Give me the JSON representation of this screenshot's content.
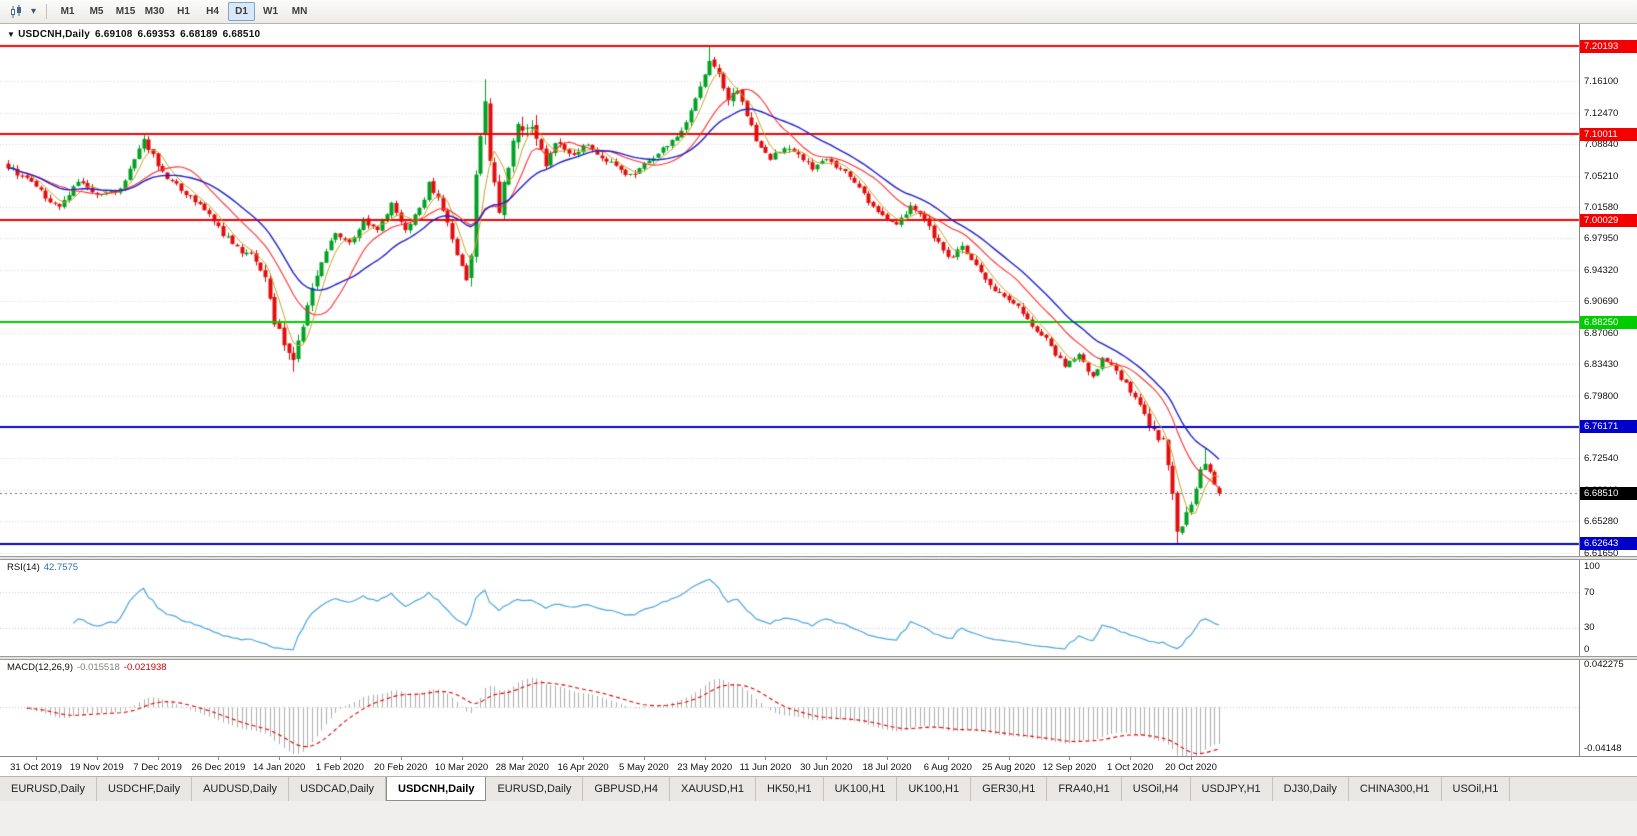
{
  "toolbar": {
    "chart_type_icon": "candlestick-chart",
    "dropdown_icon": "▾",
    "timeframes": [
      {
        "label": "M1",
        "active": false
      },
      {
        "label": "M5",
        "active": false
      },
      {
        "label": "M15",
        "active": false
      },
      {
        "label": "M30",
        "active": false
      },
      {
        "label": "H1",
        "active": false
      },
      {
        "label": "H4",
        "active": false
      },
      {
        "label": "D1",
        "active": true
      },
      {
        "label": "W1",
        "active": false
      },
      {
        "label": "MN",
        "active": false
      }
    ]
  },
  "chart": {
    "title": {
      "collapse_icon": "▼",
      "symbol": "USDCNH,Daily",
      "open": "6.69108",
      "high": "6.69353",
      "low": "6.68189",
      "close": "6.68510"
    },
    "price_scale_labels": [
      "7.16100",
      "7.12470",
      "7.08840",
      "7.05210",
      "7.01580",
      "6.97950",
      "6.94320",
      "6.90690",
      "6.87060",
      "6.83430",
      "6.79800",
      "6.76170",
      "6.72540",
      "6.68910",
      "6.65280",
      "6.61650"
    ],
    "horizontal_lines": [
      {
        "price": 7.20193,
        "label": "7.20193",
        "color": "#F40000"
      },
      {
        "price": 7.10011,
        "label": "7.10011",
        "color": "#F40000"
      },
      {
        "price": 7.00029,
        "label": "7.00029",
        "color": "#F40000"
      },
      {
        "price": 6.8825,
        "label": "6.88250",
        "color": "#00CC00"
      },
      {
        "price": 6.76171,
        "label": "6.76171",
        "color": "#0000C8"
      },
      {
        "price": 6.62643,
        "label": "6.62643",
        "color": "#0000C8"
      }
    ],
    "current_price": {
      "label": "6.68510",
      "price": 6.6851,
      "badge_color": "#000000"
    },
    "dates": [
      "31 Oct 2019",
      "19 Nov 2019",
      "7 Dec 2019",
      "26 Dec 2019",
      "14 Jan 2020",
      "1 Feb 2020",
      "20 Feb 2020",
      "10 Mar 2020",
      "28 Mar 2020",
      "16 Apr 2020",
      "5 May 2020",
      "23 May 2020",
      "11 Jun 2020",
      "30 Jun 2020",
      "18 Jul 2020",
      "6 Aug 2020",
      "25 Aug 2020",
      "12 Sep 2020",
      "1 Oct 2020",
      "20 Oct 2020"
    ]
  },
  "rsi_panel": {
    "name": "RSI(14)",
    "value": "42.7575",
    "scale": [
      "100",
      "70",
      "30",
      "0"
    ],
    "levels": [
      70,
      30
    ],
    "line_color": "#4FA7DC"
  },
  "macd_panel": {
    "name": "MACD(12,26,9)",
    "main_value": "-0.015518",
    "signal_value": "-0.021938",
    "scale_top": "0.042275",
    "scale_bottom": "-0.04148",
    "hist_color": "#ADADAD",
    "signal_color": "#E00000"
  },
  "tabs": [
    {
      "label": "EURUSD,Daily",
      "active": false
    },
    {
      "label": "USDCHF,Daily",
      "active": false
    },
    {
      "label": "AUDUSD,Daily",
      "active": false
    },
    {
      "label": "USDCAD,Daily",
      "active": false
    },
    {
      "label": "USDCNH,Daily",
      "active": true
    },
    {
      "label": "EURUSD,Daily",
      "active": false
    },
    {
      "label": "GBPUSD,H4",
      "active": false
    },
    {
      "label": "XAUUSD,H1",
      "active": false
    },
    {
      "label": "HK50,H1",
      "active": false
    },
    {
      "label": "UK100,H1",
      "active": false
    },
    {
      "label": "UK100,H1",
      "active": false
    },
    {
      "label": "GER30,H1",
      "active": false
    },
    {
      "label": "FRA40,H1",
      "active": false
    },
    {
      "label": "USOil,H4",
      "active": false
    },
    {
      "label": "USDJPY,H1",
      "active": false
    },
    {
      "label": "DJ30,Daily",
      "active": false
    },
    {
      "label": "CHINA300,H1",
      "active": false
    },
    {
      "label": "USOil,H1",
      "active": false
    }
  ],
  "chart_data": {
    "type": "candlestick",
    "symbol": "USDCNH",
    "timeframe": "Daily",
    "last_bar": {
      "open": 6.69108,
      "high": 6.69353,
      "low": 6.68189,
      "close": 6.6851
    },
    "num_bars": 260,
    "bars_per_date_tick": 13,
    "first_date_tick_bar": 6,
    "ylim": [
      6.6126,
      7.2274
    ],
    "y_tick_step": 0.0363,
    "colors": {
      "up": "#00A124",
      "down": "#E00E0E",
      "grid": "#D6D6D6"
    },
    "noise": {
      "close": 0.006,
      "gap": 0.0025,
      "wick": 0.0045
    },
    "close_path_anchors": [
      [
        0,
        7.062
      ],
      [
        4,
        7.048
      ],
      [
        8,
        7.028
      ],
      [
        11,
        7.015
      ],
      [
        15,
        7.048
      ],
      [
        19,
        7.028
      ],
      [
        24,
        7.036
      ],
      [
        27,
        7.07
      ],
      [
        29,
        7.093
      ],
      [
        33,
        7.055
      ],
      [
        37,
        7.035
      ],
      [
        41,
        7.02
      ],
      [
        46,
        6.985
      ],
      [
        50,
        6.962
      ],
      [
        52,
        6.965
      ],
      [
        55,
        6.93
      ],
      [
        57,
        6.885
      ],
      [
        59,
        6.857
      ],
      [
        61,
        6.842
      ],
      [
        62,
        6.86
      ],
      [
        64,
        6.9
      ],
      [
        66,
        6.94
      ],
      [
        68,
        6.965
      ],
      [
        70,
        6.985
      ],
      [
        73,
        6.975
      ],
      [
        76,
        7.0
      ],
      [
        79,
        6.988
      ],
      [
        82,
        7.018
      ],
      [
        85,
        6.992
      ],
      [
        88,
        7.012
      ],
      [
        90,
        7.042
      ],
      [
        92,
        7.028
      ],
      [
        94,
        6.998
      ],
      [
        96,
        6.962
      ],
      [
        98,
        6.934
      ],
      [
        99,
        6.958
      ],
      [
        100,
        7.055
      ],
      [
        102,
        7.14
      ],
      [
        103,
        7.07
      ],
      [
        105,
        7.012
      ],
      [
        107,
        7.068
      ],
      [
        109,
        7.105
      ],
      [
        111,
        7.115
      ],
      [
        113,
        7.092
      ],
      [
        115,
        7.065
      ],
      [
        117,
        7.092
      ],
      [
        119,
        7.082
      ],
      [
        121,
        7.078
      ],
      [
        124,
        7.09
      ],
      [
        127,
        7.072
      ],
      [
        130,
        7.062
      ],
      [
        133,
        7.052
      ],
      [
        136,
        7.064
      ],
      [
        138,
        7.072
      ],
      [
        141,
        7.088
      ],
      [
        144,
        7.102
      ],
      [
        146,
        7.124
      ],
      [
        148,
        7.158
      ],
      [
        150,
        7.188
      ],
      [
        152,
        7.166
      ],
      [
        154,
        7.142
      ],
      [
        156,
        7.154
      ],
      [
        158,
        7.122
      ],
      [
        160,
        7.094
      ],
      [
        163,
        7.072
      ],
      [
        166,
        7.086
      ],
      [
        169,
        7.076
      ],
      [
        172,
        7.062
      ],
      [
        175,
        7.07
      ],
      [
        178,
        7.06
      ],
      [
        181,
        7.046
      ],
      [
        184,
        7.022
      ],
      [
        187,
        7.006
      ],
      [
        190,
        6.996
      ],
      [
        193,
        7.016
      ],
      [
        196,
        7.0
      ],
      [
        198,
        6.982
      ],
      [
        201,
        6.956
      ],
      [
        204,
        6.97
      ],
      [
        207,
        6.95
      ],
      [
        210,
        6.926
      ],
      [
        213,
        6.91
      ],
      [
        216,
        6.9
      ],
      [
        219,
        6.88
      ],
      [
        222,
        6.862
      ],
      [
        224,
        6.846
      ],
      [
        226,
        6.833
      ],
      [
        229,
        6.846
      ],
      [
        232,
        6.818
      ],
      [
        234,
        6.84
      ],
      [
        237,
        6.826
      ],
      [
        239,
        6.81
      ],
      [
        241,
        6.796
      ],
      [
        243,
        6.776
      ],
      [
        245,
        6.758
      ],
      [
        247,
        6.744
      ],
      [
        248,
        6.72
      ],
      [
        250,
        6.64
      ],
      [
        252,
        6.66
      ],
      [
        253,
        6.67
      ],
      [
        255,
        6.712
      ],
      [
        256,
        6.722
      ],
      [
        257,
        6.712
      ],
      [
        258,
        6.695
      ],
      [
        259,
        6.6851
      ]
    ],
    "volatility_regions": [
      [
        55,
        66,
        1.8
      ],
      [
        99,
        114,
        2.6
      ],
      [
        146,
        159,
        1.4
      ],
      [
        244,
        252,
        1.8
      ]
    ],
    "wick_extremes": [
      {
        "i": 150,
        "high": 7.2015
      },
      {
        "i": 102,
        "high": 7.1635
      },
      {
        "i": 61,
        "low": 6.8255
      },
      {
        "i": 250,
        "low": 6.6268
      },
      {
        "i": 256,
        "high": 6.737
      }
    ],
    "moving_averages": [
      {
        "type": "sma",
        "period": 5,
        "color": "#C9A227",
        "width": 1
      },
      {
        "type": "sma",
        "period": 13,
        "color": "#FF3030",
        "width": 1.1
      },
      {
        "type": "lwma",
        "period": 30,
        "color": "#2020CC",
        "width": 1.4
      }
    ],
    "indicators": [
      {
        "type": "RSI",
        "period": 14,
        "last_value": 42.7575,
        "levels": [
          70,
          30
        ],
        "range": [
          0,
          100
        ]
      },
      {
        "type": "MACD",
        "fast": 12,
        "slow": 26,
        "signal": 9,
        "last_main": -0.015518,
        "last_signal": -0.021938,
        "scale": [
          -0.04148,
          0.042275
        ]
      }
    ]
  }
}
